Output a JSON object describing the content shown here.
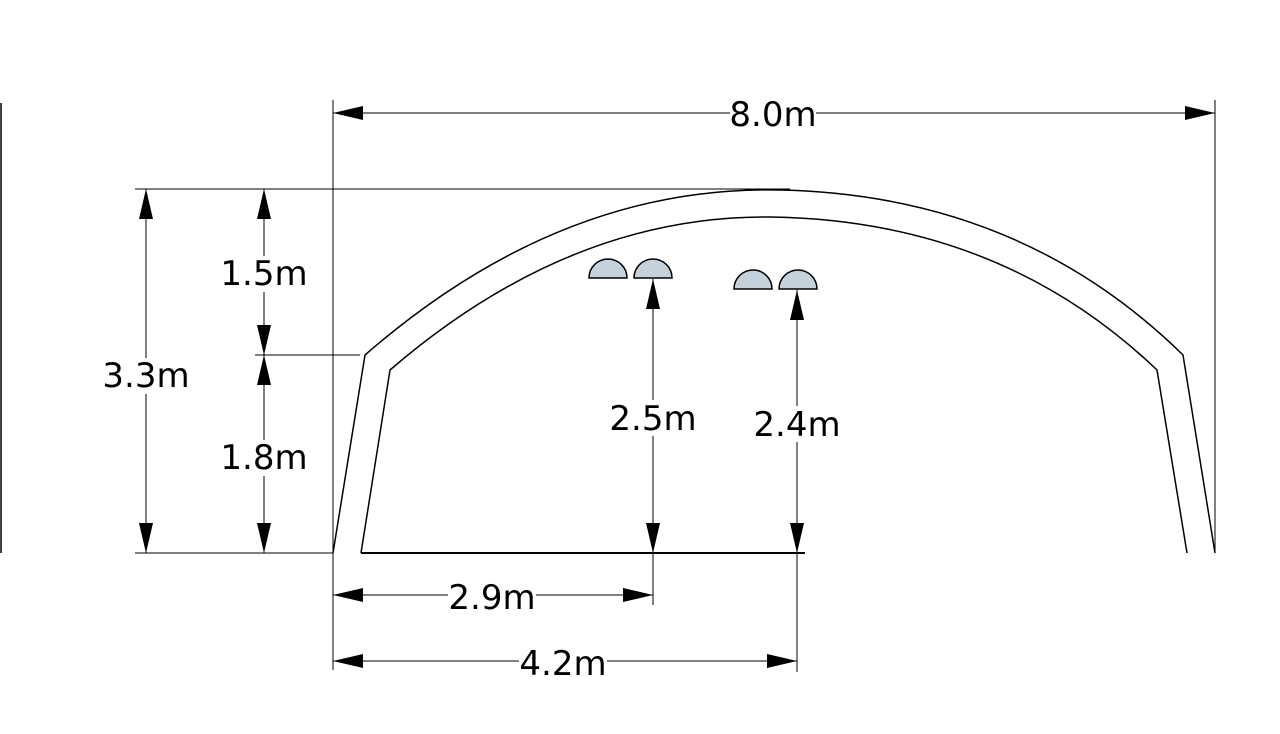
{
  "dimensions": {
    "overall_width": "8.0m",
    "total_height": "3.3m",
    "arch_rise": "1.5m",
    "wall_height": "1.8m",
    "light_row_1_height": "2.5m",
    "light_row_2_height": "2.4m",
    "light_row_1_offset": "2.9m",
    "light_row_2_offset": "4.2m"
  },
  "colors": {
    "line": "#000000",
    "light_fill": "#c5d2dc",
    "background": "#ffffff"
  }
}
